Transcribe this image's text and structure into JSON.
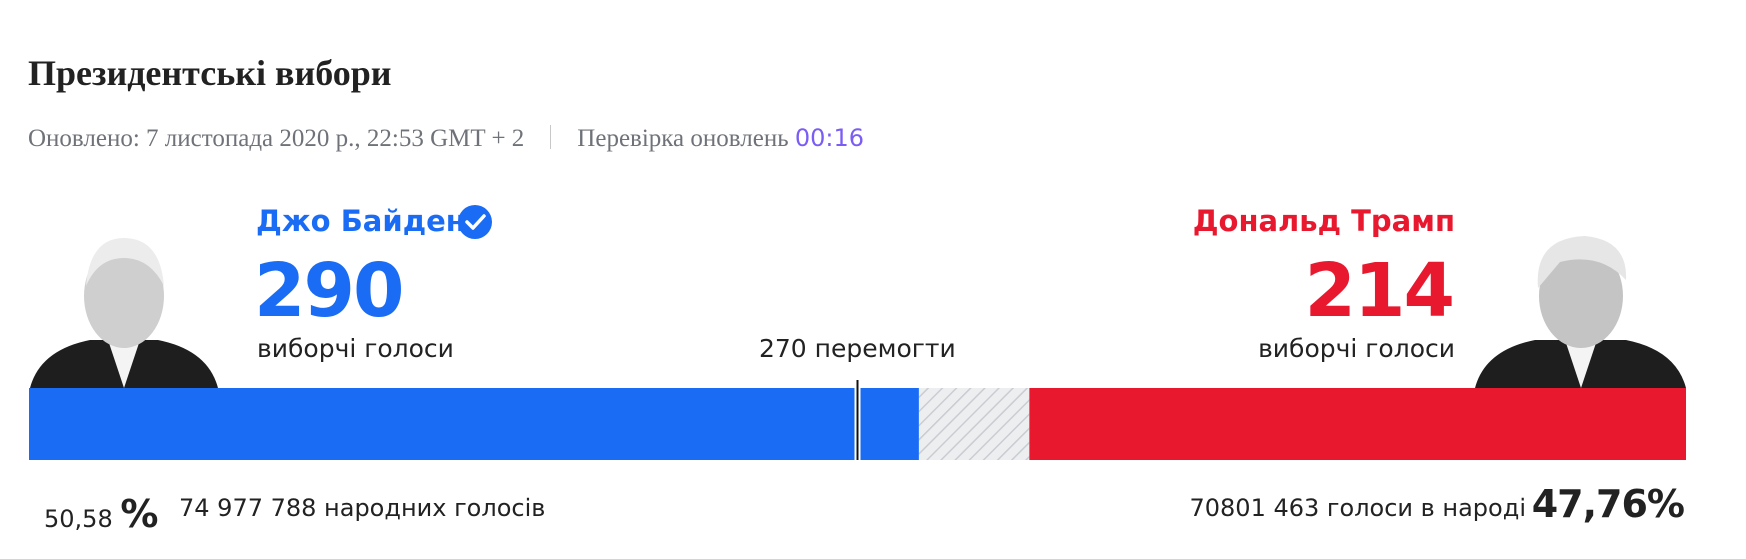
{
  "header": {
    "title": "Президентські вибори",
    "updated": "Оновлено: 7 листопада 2020 р., 22:53 GMT + 2",
    "refresh_label": "Перевірка оновлень",
    "refresh_timer": "00:16"
  },
  "results": {
    "candidates": [
      {
        "name": "Джо Байден",
        "electoral_votes": 290,
        "electoral_label": "виборчі голоси",
        "percent": "50,58",
        "percent_unit": "%",
        "popular_votes": "74 977 788 народних голосів",
        "color": "#1a6cf5"
      },
      {
        "name": "Дональд Трамп",
        "electoral_votes": 214,
        "electoral_label": "виборчі голоси",
        "percent": "47,76%",
        "popular_votes": "70801 463 голоси в народі",
        "color": "#e8192f"
      }
    ],
    "threshold": {
      "value": 270,
      "label": "270 перемогти"
    }
  }
}
